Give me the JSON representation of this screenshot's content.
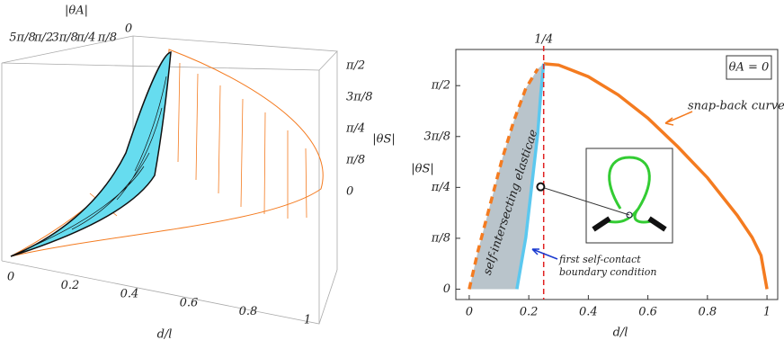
{
  "chart_data": [
    {
      "type": "surface3d",
      "x_label": "d/l",
      "y_label": "|θA|",
      "z_label": "|θS|",
      "xticks": [
        0,
        0.2,
        0.4,
        0.6,
        0.8,
        1
      ],
      "yticks": [
        {
          "value": 1.9635,
          "label": "5π/8"
        },
        {
          "value": 1.5708,
          "label": "π/2"
        },
        {
          "value": 1.1781,
          "label": "3π/8"
        },
        {
          "value": 0.7854,
          "label": "π/4"
        },
        {
          "value": 0.3927,
          "label": "π/8"
        },
        0
      ],
      "zticks": [
        0,
        {
          "value": 0.3927,
          "label": "π/8"
        },
        {
          "value": 0.7854,
          "label": "π/4"
        },
        {
          "value": 1.1781,
          "label": "3π/8"
        },
        {
          "value": 1.5708,
          "label": "π/2"
        }
      ]
    },
    {
      "type": "line",
      "x_label": "d/l",
      "y_label": "|θS|",
      "xlim": [
        -0.045,
        1.036
      ],
      "ylim": [
        -0.08,
        1.85
      ],
      "xticks": [
        0,
        0.2,
        0.4,
        0.6,
        0.8,
        1
      ],
      "yticks": [
        0,
        {
          "value": 0.3927,
          "label": "π/8"
        },
        {
          "value": 0.7854,
          "label": "π/4"
        },
        {
          "value": 1.1781,
          "label": "3π/8"
        },
        {
          "value": 1.5708,
          "label": "π/2"
        }
      ],
      "series": [
        {
          "name": "snap-back curve",
          "color": "#f47b20",
          "line_style": "solid",
          "x": [
            0.25,
            0.3,
            0.4,
            0.5,
            0.6,
            0.7,
            0.8,
            0.9,
            0.95,
            0.98,
            1
          ],
          "values": [
            1.74,
            1.73,
            1.64,
            1.5,
            1.32,
            1.1,
            0.86,
            0.57,
            0.4,
            0.26,
            0
          ]
        },
        {
          "name": "self-intersecting elasticae",
          "color": "#f47b20",
          "line_style": "dashed",
          "x": [
            0,
            0.03,
            0.07,
            0.11,
            0.15,
            0.19,
            0.23
          ],
          "values": [
            0,
            0.3,
            0.65,
            1.0,
            1.3,
            1.55,
            1.7
          ]
        },
        {
          "name": "first self-contact boundary condition",
          "color": "#5bc8ef",
          "line_style": "solid",
          "x": [
            0.16,
            0.19,
            0.21,
            0.23,
            0.24,
            0.25
          ],
          "values": [
            0,
            0.4,
            0.8,
            1.2,
            1.5,
            1.74
          ]
        }
      ],
      "vline": {
        "x": 0.25,
        "label": "1/4",
        "color": "#e02020"
      },
      "legend_box": "θA = 0",
      "marker": {
        "x": 0.24,
        "y": 0.79
      }
    }
  ]
}
